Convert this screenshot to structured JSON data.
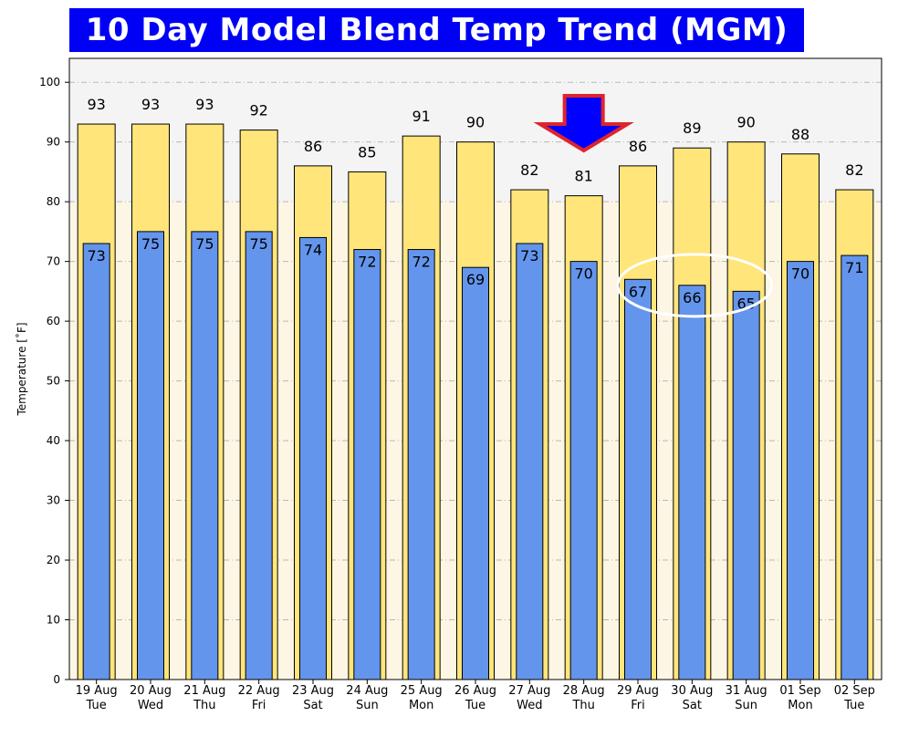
{
  "title": "10 Day Model Blend Temp Trend (MGM)",
  "chart_data": {
    "type": "bar",
    "categories": [
      "19 Aug",
      "20 Aug",
      "21 Aug",
      "22 Aug",
      "23 Aug",
      "24 Aug",
      "25 Aug",
      "26 Aug",
      "27 Aug",
      "28 Aug",
      "29 Aug",
      "30 Aug",
      "31 Aug",
      "01 Sep",
      "02 Sep"
    ],
    "weekdays": [
      "Tue",
      "Wed",
      "Thu",
      "Fri",
      "Sat",
      "Sun",
      "Mon",
      "Tue",
      "Wed",
      "Thu",
      "Fri",
      "Sat",
      "Sun",
      "Mon",
      "Tue"
    ],
    "series": [
      {
        "values": [
          93,
          93,
          93,
          92,
          86,
          85,
          91,
          90,
          82,
          81,
          86,
          89,
          90,
          88,
          82
        ],
        "color": "#ffe57a"
      },
      {
        "values": [
          73,
          75,
          75,
          75,
          74,
          72,
          72,
          69,
          73,
          70,
          67,
          66,
          65,
          70,
          71
        ],
        "color": "#6495ed"
      }
    ],
    "ylabel": "Temperature [˚F]",
    "ylim": [
      0,
      100
    ],
    "yticks": [
      0,
      10,
      20,
      30,
      40,
      50,
      60,
      70,
      80,
      90,
      100
    ],
    "grid": true,
    "background_colors": {
      "plot": "#f4f4f4",
      "lower_band": "#fdf6e4"
    },
    "annotations": [
      {
        "kind": "down-arrow",
        "color": "#0000ff",
        "outline": "#e0242c",
        "category": "28 Aug"
      },
      {
        "kind": "ellipse",
        "color": "#ffffff",
        "categories": [
          "29 Aug",
          "30 Aug",
          "31 Aug"
        ]
      }
    ]
  }
}
